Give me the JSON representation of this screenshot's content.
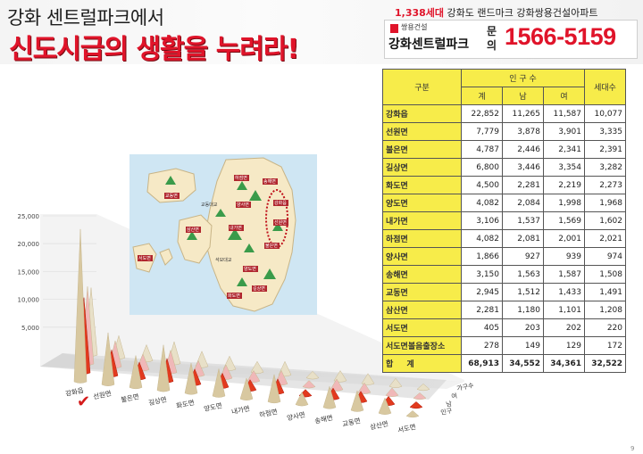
{
  "header": {
    "line1": "강화 센트럴파크에서",
    "line2": "신도시급의 생활을 누려라!"
  },
  "ad": {
    "households": "1,338세대",
    "tagline": "강화도 랜드마크 강화쌍용건설아파트",
    "company": "쌍용건설",
    "brand": "강화센트럴파크",
    "ask_line1": "문",
    "ask_line2": "의",
    "phone": "1566-5159"
  },
  "table": {
    "col_region": "구분",
    "col_pop": "인 구 수",
    "col_total": "계",
    "col_male": "남",
    "col_female": "여",
    "col_households": "세대수",
    "rows": [
      {
        "region": "강화읍",
        "total": "22,852",
        "male": "11,265",
        "female": "11,587",
        "households": "10,077"
      },
      {
        "region": "선원면",
        "total": "7,779",
        "male": "3,878",
        "female": "3,901",
        "households": "3,335"
      },
      {
        "region": "불은면",
        "total": "4,787",
        "male": "2,446",
        "female": "2,341",
        "households": "2,391"
      },
      {
        "region": "길상면",
        "total": "6,800",
        "male": "3,446",
        "female": "3,354",
        "households": "3,282"
      },
      {
        "region": "화도면",
        "total": "4,500",
        "male": "2,281",
        "female": "2,219",
        "households": "2,273"
      },
      {
        "region": "양도면",
        "total": "4,082",
        "male": "2,084",
        "female": "1,998",
        "households": "1,968"
      },
      {
        "region": "내가면",
        "total": "3,106",
        "male": "1,537",
        "female": "1,569",
        "households": "1,602"
      },
      {
        "region": "하점면",
        "total": "4,082",
        "male": "2,081",
        "female": "2,001",
        "households": "2,021"
      },
      {
        "region": "양사면",
        "total": "1,866",
        "male": "927",
        "female": "939",
        "households": "974"
      },
      {
        "region": "송해면",
        "total": "3,150",
        "male": "1,563",
        "female": "1,587",
        "households": "1,508"
      },
      {
        "region": "교동면",
        "total": "2,945",
        "male": "1,512",
        "female": "1,433",
        "households": "1,491"
      },
      {
        "region": "삼산면",
        "total": "2,281",
        "male": "1,180",
        "female": "1,101",
        "households": "1,208"
      },
      {
        "region": "서도면",
        "total": "405",
        "male": "203",
        "female": "202",
        "households": "220"
      },
      {
        "region": "서도면볼음출장소",
        "total": "278",
        "male": "149",
        "female": "129",
        "households": "172"
      }
    ],
    "total_row": {
      "region": "합 계",
      "total": "68,913",
      "male": "34,552",
      "female": "34,361",
      "households": "32,522"
    }
  },
  "map": {
    "labels": [
      "교동면",
      "삼산면",
      "서도면",
      "하점면",
      "송해면",
      "강화읍",
      "선원면",
      "불은면",
      "교동대교",
      "석모대교",
      "양사면",
      "내가면",
      "양도면",
      "길상면",
      "화도면"
    ]
  },
  "chart_data": {
    "type": "bar",
    "categories": [
      "강화읍",
      "선원면",
      "불은면",
      "길상면",
      "화도면",
      "양도면",
      "내가면",
      "하점면",
      "양사면",
      "송해면",
      "교동면",
      "삼산면",
      "서도면"
    ],
    "series": [
      {
        "name": "가구수",
        "values": [
          10077,
          3335,
          2391,
          3282,
          2273,
          1968,
          1602,
          2021,
          974,
          1508,
          1491,
          1208,
          220
        ]
      },
      {
        "name": "여",
        "values": [
          11587,
          3901,
          2341,
          3354,
          2219,
          1998,
          1569,
          2001,
          939,
          1587,
          1433,
          1101,
          202
        ]
      },
      {
        "name": "남",
        "values": [
          11265,
          3878,
          2446,
          3446,
          2281,
          2084,
          1537,
          2081,
          927,
          1563,
          1512,
          1180,
          203
        ]
      },
      {
        "name": "인구",
        "values": [
          22852,
          7779,
          4787,
          6800,
          4500,
          4082,
          3106,
          4082,
          1866,
          3150,
          2945,
          2281,
          405
        ]
      }
    ],
    "y_ticks": [
      "25,000",
      "20,000",
      "15,000",
      "10,000",
      "5,000"
    ],
    "ylim": [
      0,
      25000
    ],
    "series_colors": [
      "#e8e0c8",
      "#f0b8b8",
      "#e23a1e",
      "#d8c8a0"
    ]
  },
  "footer": {
    "page": "9"
  }
}
